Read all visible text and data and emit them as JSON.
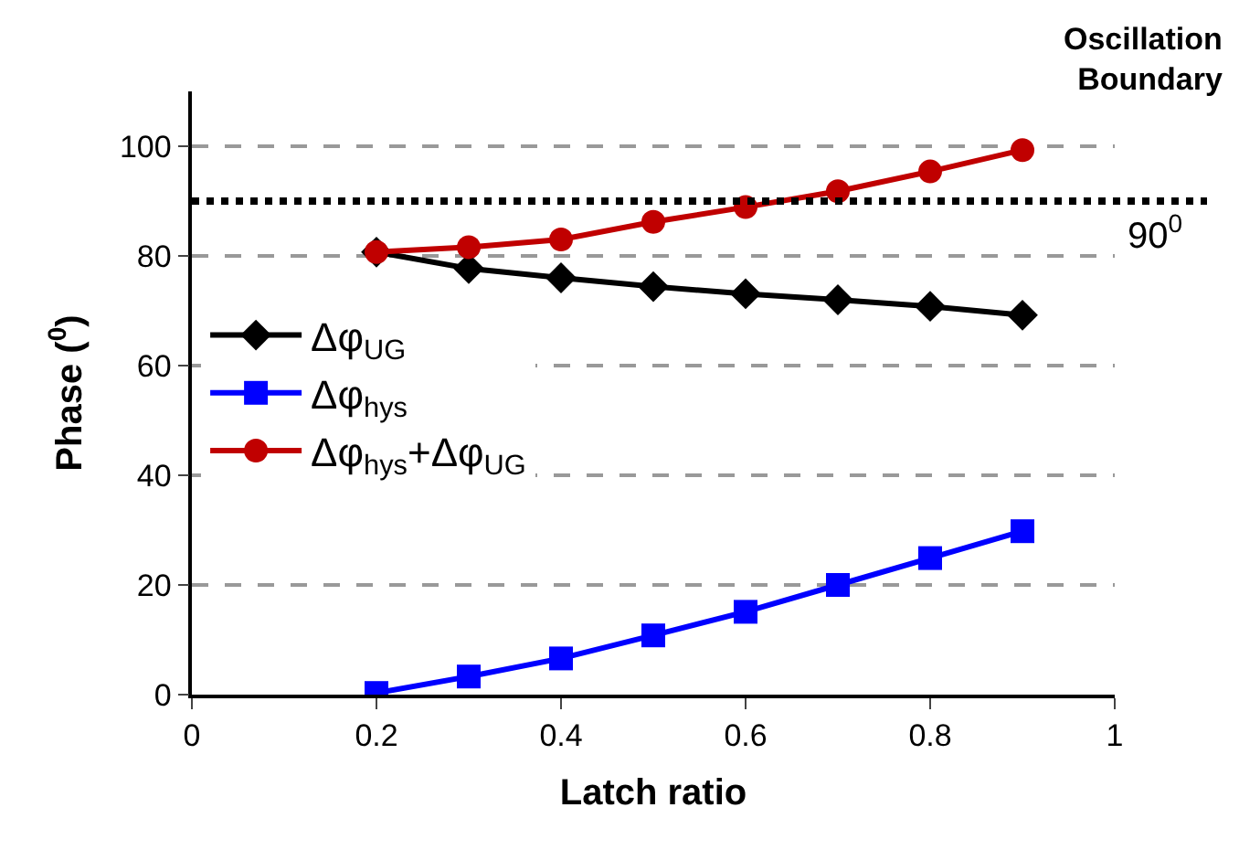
{
  "chart_data": {
    "type": "line",
    "xlabel": "Latch ratio",
    "ylabel": "Phase ($^{0}$)",
    "x": [
      0.2,
      0.3,
      0.4,
      0.5,
      0.6,
      0.7,
      0.8,
      0.9
    ],
    "series": [
      {
        "name": "Δφ$_{UG}$",
        "color": "#000000",
        "marker": "diamond",
        "values": [
          80.7,
          77.7,
          76,
          74.4,
          73.1,
          72,
          70.8,
          69.2
        ]
      },
      {
        "name": "Δφ$_{hys}$",
        "color": "#0000ff",
        "marker": "square",
        "values": [
          0.3,
          3.3,
          6.6,
          10.8,
          15.1,
          20,
          24.9,
          29.8
        ]
      },
      {
        "name": "Δφ$_{hys}$+Δφ$_{UG}$",
        "color": "#c00000",
        "marker": "circle",
        "values": [
          80.7,
          81.6,
          83,
          86.2,
          88.9,
          91.8,
          95.4,
          99.3
        ]
      }
    ],
    "xlim": [
      0,
      1
    ],
    "xticks": [
      0,
      0.2,
      0.4,
      0.6,
      0.8,
      1
    ],
    "ylim": [
      0,
      110
    ],
    "yticks": [
      0,
      20,
      40,
      60,
      80,
      100
    ],
    "grid": "y",
    "legend": "left",
    "line_style": "solid",
    "ref_lines": [
      {
        "axis": "y",
        "value": 90,
        "label": "90$^{0}$",
        "color": "#000000",
        "line_style": "dotted"
      }
    ],
    "annotations": [
      "Oscillation Boundary"
    ]
  }
}
